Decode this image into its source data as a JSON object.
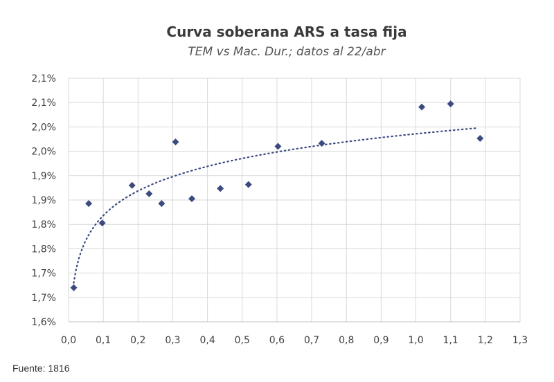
{
  "chart_data": {
    "type": "scatter",
    "title": "Curva soberana ARS a tasa fija",
    "subtitle": "TEM vs Mac. Dur.; datos al 22/abr",
    "xlabel": "",
    "ylabel": "",
    "xlim": [
      0.0,
      1.3
    ],
    "ylim": [
      1.6,
      2.15
    ],
    "x_ticks": [
      "0,0",
      "0,1",
      "0,2",
      "0,3",
      "0,4",
      "0,5",
      "0,6",
      "0,7",
      "0,8",
      "0,9",
      "1,0",
      "1,1",
      "1,2",
      "1,3"
    ],
    "y_ticks": [
      "1,6%",
      "1,7%",
      "1,7%",
      "1,8%",
      "1,8%",
      "1,9%",
      "1,9%",
      "2,0%",
      "2,0%",
      "2,1%",
      "2,1%"
    ],
    "grid": true,
    "legend": "none",
    "marker": "diamond",
    "marker_color": "#3c4a80",
    "trendline": {
      "type": "logarithmic",
      "style": "dotted",
      "color": "#3c4a80",
      "x_range": [
        0.015,
        1.18
      ]
    },
    "points": [
      {
        "x": 0.015,
        "y": 1.677
      },
      {
        "x": 0.058,
        "y": 1.867
      },
      {
        "x": 0.097,
        "y": 1.823
      },
      {
        "x": 0.183,
        "y": 1.908
      },
      {
        "x": 0.232,
        "y": 1.889
      },
      {
        "x": 0.268,
        "y": 1.867
      },
      {
        "x": 0.308,
        "y": 2.006
      },
      {
        "x": 0.355,
        "y": 1.878
      },
      {
        "x": 0.437,
        "y": 1.901
      },
      {
        "x": 0.518,
        "y": 1.91
      },
      {
        "x": 0.603,
        "y": 1.996
      },
      {
        "x": 0.729,
        "y": 2.003
      },
      {
        "x": 1.017,
        "y": 2.085
      },
      {
        "x": 1.1,
        "y": 2.092
      },
      {
        "x": 1.185,
        "y": 2.014
      }
    ]
  },
  "source": "Fuente: 1816"
}
